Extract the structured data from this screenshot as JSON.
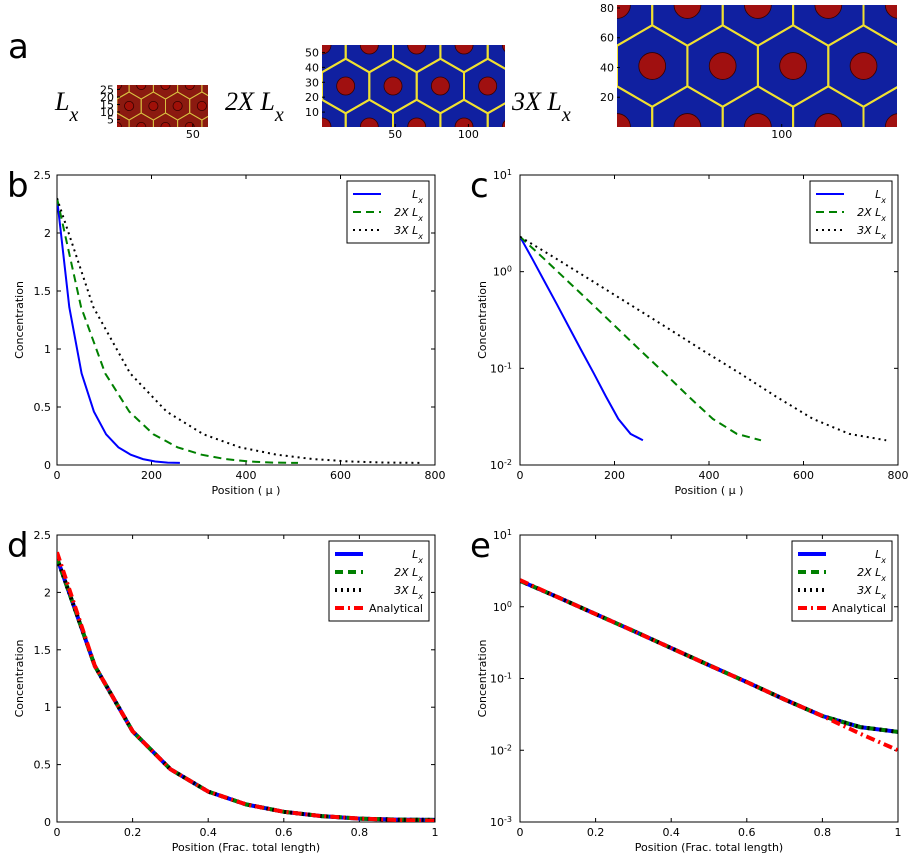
{
  "chart_data": [
    {
      "type": "hex-image",
      "panel": "a",
      "label": "L",
      "label_sub": "x",
      "colors": {
        "bg": "#8b1a10",
        "line": "#d8c040",
        "dot": "#a01008"
      },
      "xlim": [
        0,
        60
      ],
      "ylim": [
        0,
        28
      ],
      "xticks": [
        50
      ],
      "yticks": [
        5,
        10,
        15,
        20,
        25
      ]
    },
    {
      "type": "hex-image",
      "label": "2X L",
      "label_sub": "x",
      "colors": {
        "bg": "#1020a0",
        "line": "#f0e030",
        "dot": "#a01010"
      },
      "xlim": [
        0,
        125
      ],
      "ylim": [
        0,
        55
      ],
      "xticks": [
        50,
        100
      ],
      "yticks": [
        10,
        20,
        30,
        40,
        50
      ]
    },
    {
      "type": "hex-image",
      "label": "3X L",
      "label_sub": "x",
      "colors": {
        "bg": "#1020a0",
        "line": "#f0e030",
        "dot": "#a01010"
      },
      "xlim": [
        0,
        170
      ],
      "ylim": [
        0,
        82
      ],
      "xticks": [
        100
      ],
      "yticks": [
        20,
        40,
        60,
        80
      ]
    },
    {
      "type": "line",
      "panel": "b",
      "xlabel": "Position ( μ )",
      "ylabel": "Concentration",
      "yscale": "linear",
      "legend": "top-right",
      "linewidth": 2,
      "xlim": [
        0,
        800
      ],
      "ylim": [
        0,
        2.5
      ],
      "xticks": [
        0,
        200,
        400,
        600,
        800
      ],
      "yticks": [
        0,
        0.5,
        1,
        1.5,
        2,
        2.5
      ],
      "series": [
        {
          "name": "L",
          "subscript": "x",
          "color": "#0000ff",
          "dash": "solid",
          "x": [
            0,
            26,
            52,
            78,
            104,
            130,
            156,
            182,
            208,
            234,
            260
          ],
          "values": [
            2.3,
            1.36,
            0.79,
            0.46,
            0.265,
            0.153,
            0.089,
            0.051,
            0.03,
            0.021,
            0.018
          ]
        },
        {
          "name": "2X L",
          "subscript": "x",
          "color": "#008000",
          "dash": "dashed",
          "x": [
            0,
            51,
            102,
            153,
            204,
            255,
            306,
            357,
            408,
            459,
            510
          ],
          "values": [
            2.3,
            1.36,
            0.79,
            0.46,
            0.265,
            0.153,
            0.089,
            0.051,
            0.03,
            0.021,
            0.018
          ]
        },
        {
          "name": "3X L",
          "subscript": "x",
          "color": "#000000",
          "dash": "dotted",
          "x": [
            0,
            77,
            155,
            232,
            310,
            387,
            465,
            542,
            620,
            697,
            775
          ],
          "values": [
            2.3,
            1.36,
            0.79,
            0.46,
            0.265,
            0.153,
            0.089,
            0.051,
            0.03,
            0.021,
            0.018
          ]
        }
      ]
    },
    {
      "type": "line",
      "panel": "c",
      "xlabel": "Position ( μ )",
      "ylabel": "Concentration",
      "yscale": "log",
      "legend": "top-right",
      "linewidth": 2,
      "xlim": [
        0,
        800
      ],
      "ylim": [
        0.01,
        10
      ],
      "xticks": [
        0,
        200,
        400,
        600,
        800
      ],
      "yticks": [
        {
          "value": 0.01,
          "label": "10",
          "exponent": "-2"
        },
        {
          "value": 0.1,
          "label": "10",
          "exponent": "-1"
        },
        {
          "value": 1,
          "label": "10",
          "exponent": "0"
        },
        {
          "value": 10,
          "label": "10",
          "exponent": "1"
        }
      ],
      "series": [
        {
          "name": "L",
          "subscript": "x",
          "color": "#0000ff",
          "dash": "solid",
          "x": [
            0,
            26,
            52,
            78,
            104,
            130,
            156,
            182,
            208,
            234,
            260
          ],
          "values": [
            2.3,
            1.36,
            0.79,
            0.46,
            0.265,
            0.153,
            0.089,
            0.051,
            0.03,
            0.021,
            0.018
          ]
        },
        {
          "name": "2X L",
          "subscript": "x",
          "color": "#008000",
          "dash": "dashed",
          "x": [
            0,
            51,
            102,
            153,
            204,
            255,
            306,
            357,
            408,
            459,
            510
          ],
          "values": [
            2.3,
            1.36,
            0.79,
            0.46,
            0.265,
            0.153,
            0.089,
            0.051,
            0.03,
            0.021,
            0.018
          ]
        },
        {
          "name": "3X L",
          "subscript": "x",
          "color": "#000000",
          "dash": "dotted",
          "x": [
            0,
            77,
            155,
            232,
            310,
            387,
            465,
            542,
            620,
            697,
            775
          ],
          "values": [
            2.3,
            1.36,
            0.79,
            0.46,
            0.265,
            0.153,
            0.089,
            0.051,
            0.03,
            0.021,
            0.018
          ]
        }
      ]
    },
    {
      "type": "line",
      "panel": "d",
      "xlabel": "Position (Frac. total length)",
      "ylabel": "Concentration",
      "yscale": "linear",
      "legend": "top-right",
      "linewidth": 4,
      "xlim": [
        0,
        1
      ],
      "ylim": [
        0,
        2.5
      ],
      "xticks": [
        0,
        0.2,
        0.4,
        0.6,
        0.8,
        1
      ],
      "yticks": [
        0,
        0.5,
        1,
        1.5,
        2,
        2.5
      ],
      "series": [
        {
          "name": "L",
          "subscript": "x",
          "color": "#0000ff",
          "dash": "solid",
          "x": [
            0,
            0.1,
            0.2,
            0.3,
            0.4,
            0.5,
            0.6,
            0.7,
            0.8,
            0.9,
            1
          ],
          "values": [
            2.3,
            1.36,
            0.79,
            0.46,
            0.265,
            0.153,
            0.089,
            0.051,
            0.03,
            0.021,
            0.018
          ]
        },
        {
          "name": "2X L",
          "subscript": "x",
          "color": "#008000",
          "dash": "dashed",
          "x": [
            0,
            0.1,
            0.2,
            0.3,
            0.4,
            0.5,
            0.6,
            0.7,
            0.8,
            0.9,
            1
          ],
          "values": [
            2.3,
            1.36,
            0.79,
            0.46,
            0.265,
            0.153,
            0.089,
            0.051,
            0.03,
            0.021,
            0.018
          ]
        },
        {
          "name": "3X L",
          "subscript": "x",
          "color": "#000000",
          "dash": "dotted",
          "x": [
            0,
            0.1,
            0.2,
            0.3,
            0.4,
            0.5,
            0.6,
            0.7,
            0.8,
            0.9,
            1
          ],
          "values": [
            2.3,
            1.36,
            0.79,
            0.46,
            0.265,
            0.153,
            0.089,
            0.051,
            0.03,
            0.021,
            0.018
          ]
        },
        {
          "name": "Analytical",
          "color": "#ff0000",
          "dash": "dashdot",
          "x": [
            0,
            0.1,
            0.2,
            0.3,
            0.4,
            0.5,
            0.6,
            0.7,
            0.8,
            0.9,
            1
          ],
          "values": [
            2.35,
            1.36,
            0.79,
            0.46,
            0.265,
            0.153,
            0.089,
            0.051,
            0.03,
            0.017,
            0.01
          ]
        }
      ]
    },
    {
      "type": "line",
      "panel": "e",
      "xlabel": "Position (Frac. total length)",
      "ylabel": "Concentration",
      "yscale": "log",
      "legend": "top-right",
      "linewidth": 4,
      "xlim": [
        0,
        1
      ],
      "ylim": [
        0.001,
        10
      ],
      "xticks": [
        0,
        0.2,
        0.4,
        0.6,
        0.8,
        1
      ],
      "yticks": [
        {
          "value": 0.001,
          "label": "10",
          "exponent": "-3"
        },
        {
          "value": 0.01,
          "label": "10",
          "exponent": "-2"
        },
        {
          "value": 0.1,
          "label": "10",
          "exponent": "-1"
        },
        {
          "value": 1,
          "label": "10",
          "exponent": "0"
        },
        {
          "value": 10,
          "label": "10",
          "exponent": "1"
        }
      ],
      "series": [
        {
          "name": "L",
          "subscript": "x",
          "color": "#0000ff",
          "dash": "solid",
          "x": [
            0,
            0.1,
            0.2,
            0.3,
            0.4,
            0.5,
            0.6,
            0.7,
            0.8,
            0.9,
            1
          ],
          "values": [
            2.3,
            1.36,
            0.79,
            0.46,
            0.265,
            0.153,
            0.089,
            0.051,
            0.03,
            0.021,
            0.018
          ]
        },
        {
          "name": "2X L",
          "subscript": "x",
          "color": "#008000",
          "dash": "dashed",
          "x": [
            0,
            0.1,
            0.2,
            0.3,
            0.4,
            0.5,
            0.6,
            0.7,
            0.8,
            0.9,
            1
          ],
          "values": [
            2.3,
            1.36,
            0.79,
            0.46,
            0.265,
            0.153,
            0.089,
            0.051,
            0.03,
            0.021,
            0.018
          ]
        },
        {
          "name": "3X L",
          "subscript": "x",
          "color": "#000000",
          "dash": "dotted",
          "x": [
            0,
            0.1,
            0.2,
            0.3,
            0.4,
            0.5,
            0.6,
            0.7,
            0.8,
            0.9,
            1
          ],
          "values": [
            2.3,
            1.36,
            0.79,
            0.46,
            0.265,
            0.153,
            0.089,
            0.051,
            0.03,
            0.021,
            0.018
          ]
        },
        {
          "name": "Analytical",
          "color": "#ff0000",
          "dash": "dashdot",
          "x": [
            0,
            0.1,
            0.2,
            0.3,
            0.4,
            0.5,
            0.6,
            0.7,
            0.8,
            0.9,
            1
          ],
          "values": [
            2.35,
            1.36,
            0.79,
            0.46,
            0.265,
            0.153,
            0.089,
            0.051,
            0.03,
            0.017,
            0.01
          ]
        }
      ]
    }
  ]
}
